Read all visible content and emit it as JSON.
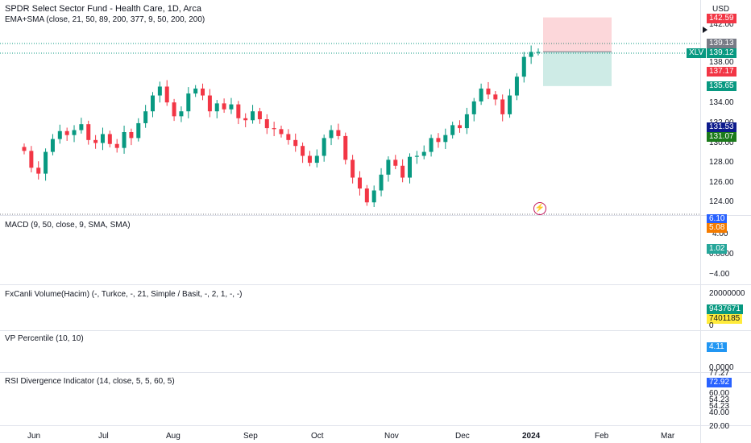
{
  "header": {
    "title": "SPDR Select Sector Fund - Health Care, 1D, Arca",
    "study": "EMA+SMA (close, 21, 50, 89, 200, 377, 9, 50, 200, 200)",
    "currency": "USD"
  },
  "indicators": {
    "macd": "MACD (9, 50, close, 9, SMA, SMA)",
    "volume": "FxCanli Volume(Hacim) (-, Turkce, -, 21, Simple / Basit, -, 2, 1, -, -)",
    "vp": "VP Percentile (10, 10)",
    "rsi": "RSI Divergence Indicator (14, close, 5, 5, 60, 5)"
  },
  "price_axis": {
    "ticks": [
      "142.00",
      "138.00",
      "134.00",
      "132.00",
      "130.00",
      "128.00",
      "126.00",
      "124.00"
    ],
    "badges": {
      "top": "142.59",
      "gray": "139.13",
      "symbol": "XLV",
      "last": "139.12",
      "red": "137.17",
      "teal": "135.65",
      "blue": "131.53",
      "green": "131.07"
    }
  },
  "macd_axis": {
    "ticks": [
      "4.00",
      "0.0000",
      "−4.00"
    ],
    "badges": {
      "blue": "6.10",
      "orange": "5.08",
      "teal": "1.02"
    }
  },
  "volume_axis": {
    "ticks": [
      "20000000",
      "0"
    ],
    "badges": {
      "green": "9437671",
      "yellow": "7401185"
    }
  },
  "vp_axis": {
    "ticks": [
      "0.0000"
    ],
    "badges": {
      "blue": "4.11"
    }
  },
  "rsi_axis": {
    "ticks": [
      "77.27",
      "60.00",
      "54.23",
      "54.23",
      "40.00",
      "20.00"
    ],
    "badges": {
      "blue": "72.92"
    }
  },
  "time_axis": [
    "Jun",
    "Jul",
    "Aug",
    "Sep",
    "Oct",
    "Nov",
    "Dec",
    "2024",
    "Feb",
    "Mar"
  ],
  "colors": {
    "up": "#089981",
    "down": "#f23645",
    "blue": "#2962ff",
    "orange": "#f57c00",
    "yellow": "#ffeb3b",
    "green": "#1b5e20"
  },
  "chart_data": {
    "type": "candlestick",
    "symbol": "XLV",
    "x_labels": [
      "Jun",
      "Jul",
      "Aug",
      "Sep",
      "Oct",
      "Nov",
      "Dec",
      "2024",
      "Feb",
      "Mar"
    ],
    "close_path": [
      129.1,
      127.4,
      126.8,
      129.0,
      130.3,
      131.1,
      130.7,
      131.2,
      131.8,
      130.2,
      129.9,
      130.8,
      129.8,
      129.4,
      131.0,
      130.4,
      131.9,
      133.1,
      134.7,
      135.6,
      134.0,
      132.6,
      133.1,
      134.9,
      135.4,
      134.7,
      133.1,
      133.9,
      133.3,
      133.8,
      132.4,
      132.2,
      133.1,
      132.3,
      131.4,
      131.3,
      130.8,
      130.2,
      129.6,
      128.6,
      127.9,
      128.6,
      130.4,
      131.2,
      130.6,
      128.2,
      126.4,
      125.3,
      123.9,
      125.1,
      126.7,
      128.2,
      127.6,
      126.4,
      128.5,
      128.6,
      129.0,
      130.4,
      130.0,
      130.7,
      131.7,
      131.4,
      132.8,
      134.1,
      135.4,
      134.8,
      134.3,
      132.8,
      134.7,
      136.6,
      138.6,
      139.1,
      139.1
    ],
    "position": {
      "entry": 139.12,
      "target": 142.59,
      "stop": 135.65
    },
    "current_price": 139.12
  }
}
